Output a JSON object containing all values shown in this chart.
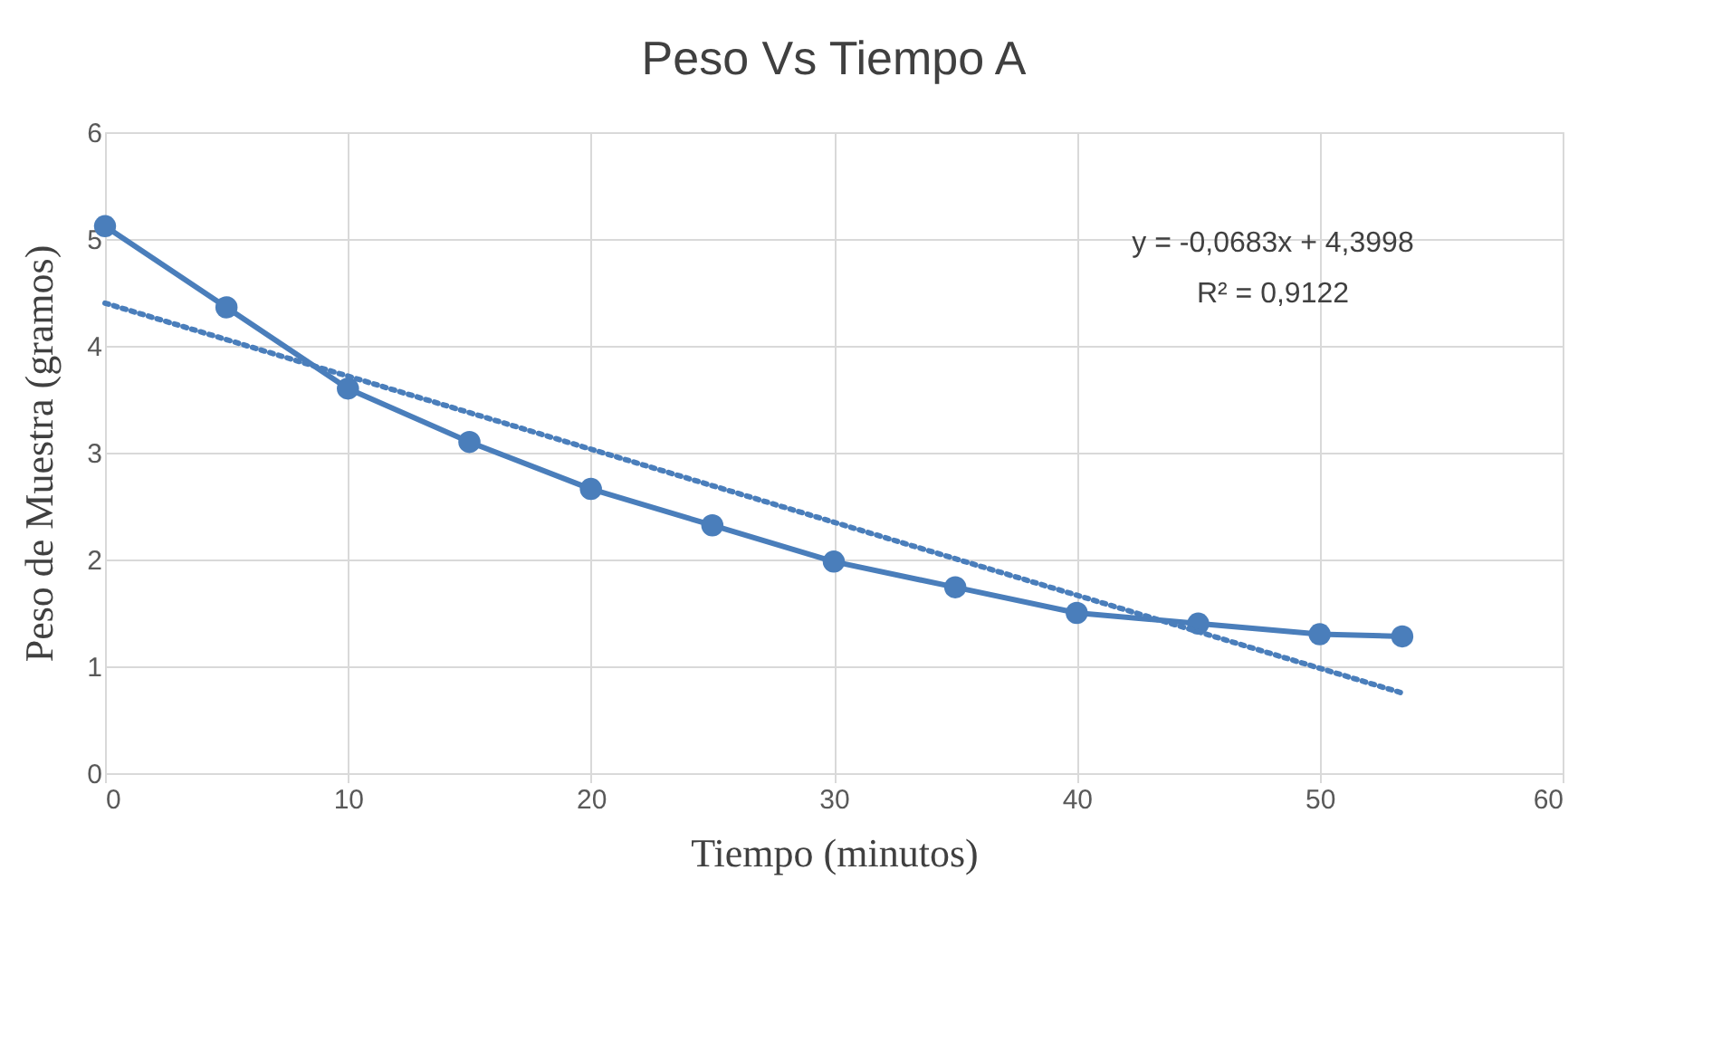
{
  "chart_data": {
    "type": "line",
    "title": "Peso Vs Tiempo A",
    "xlabel": "Tiempo (minutos)",
    "ylabel": "Peso de Muestra (gramos)",
    "xlim": [
      0,
      60
    ],
    "xticks": [
      0,
      10,
      20,
      30,
      40,
      50,
      60
    ],
    "ylim": [
      0,
      6
    ],
    "yticks": [
      0,
      1,
      2,
      3,
      4,
      5,
      6
    ],
    "grid": true,
    "annotations": [
      "y = -0,0683x + 4,3998",
      "R² = 0,9122"
    ],
    "series": [
      {
        "color": "#4a7ebb",
        "marker": "circle",
        "line_style": "solid",
        "x": [
          0,
          5,
          10,
          15,
          20,
          25,
          30,
          35,
          40,
          45,
          50,
          53.4
        ],
        "values": [
          5.12,
          4.36,
          3.6,
          3.1,
          2.66,
          2.32,
          1.98,
          1.74,
          1.5,
          1.4,
          1.3,
          1.28
        ]
      },
      {
        "type": "line",
        "color": "#4a7ebb",
        "marker": "none",
        "line_style": "dotted",
        "x": [
          0,
          53.4
        ],
        "values": [
          4.4,
          0.75
        ]
      }
    ]
  }
}
